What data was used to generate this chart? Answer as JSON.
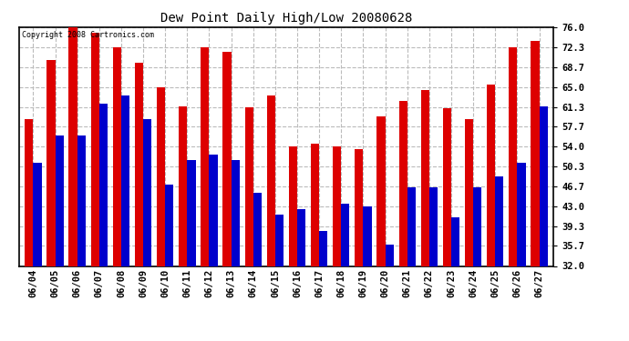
{
  "title": "Dew Point Daily High/Low 20080628",
  "copyright": "Copyright 2008 Cartronics.com",
  "dates": [
    "06/04",
    "06/05",
    "06/06",
    "06/07",
    "06/08",
    "06/09",
    "06/10",
    "06/11",
    "06/12",
    "06/13",
    "06/14",
    "06/15",
    "06/16",
    "06/17",
    "06/18",
    "06/19",
    "06/20",
    "06/21",
    "06/22",
    "06/23",
    "06/24",
    "06/25",
    "06/26",
    "06/27"
  ],
  "highs": [
    59.0,
    70.0,
    76.0,
    75.0,
    72.3,
    69.5,
    65.0,
    61.5,
    72.3,
    71.5,
    61.3,
    63.5,
    54.0,
    54.5,
    54.0,
    53.5,
    59.5,
    62.5,
    64.5,
    61.0,
    59.0,
    65.5,
    72.3,
    73.5
  ],
  "lows": [
    51.0,
    56.0,
    56.0,
    62.0,
    63.5,
    59.0,
    47.0,
    51.5,
    52.5,
    51.5,
    45.5,
    41.5,
    42.5,
    38.5,
    43.5,
    43.0,
    36.0,
    46.5,
    46.5,
    41.0,
    46.5,
    48.5,
    51.0,
    61.5
  ],
  "high_color": "#dd0000",
  "low_color": "#0000cc",
  "bg_color": "#ffffff",
  "grid_color": "#bbbbbb",
  "ymin": 32.0,
  "ymax": 76.0,
  "yticks": [
    32.0,
    35.7,
    39.3,
    43.0,
    46.7,
    50.3,
    54.0,
    57.7,
    61.3,
    65.0,
    68.7,
    72.3,
    76.0
  ],
  "bar_width": 0.38
}
